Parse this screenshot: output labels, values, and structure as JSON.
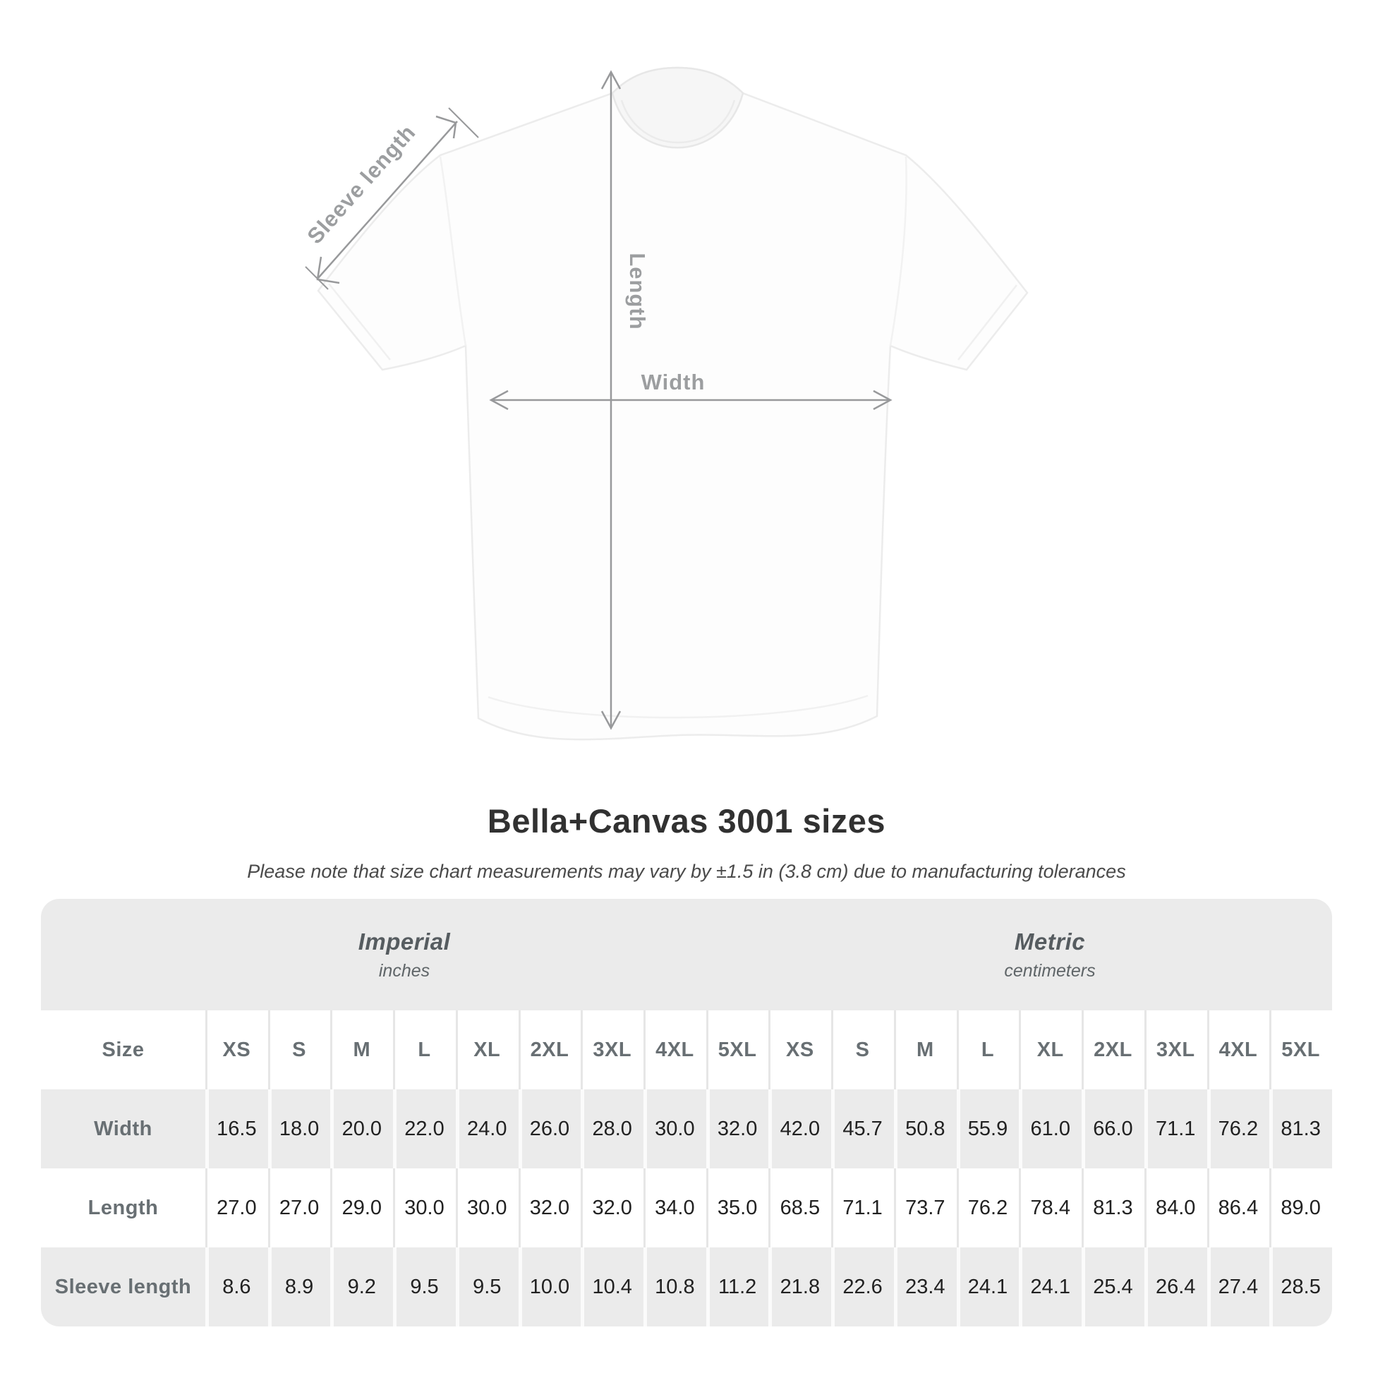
{
  "diagram": {
    "labels": {
      "sleeve_length": "Sleeve length",
      "length": "Length",
      "width": "Width"
    },
    "arrow_color": "#98999b",
    "label_color": "#9c9ea0"
  },
  "title": "Bella+Canvas 3001 sizes",
  "subtitle": "Please note that size chart measurements may vary by ±1.5 in (3.8 cm) due to manufacturing tolerances",
  "table": {
    "size_header": "Size",
    "unit_groups": [
      {
        "name": "Imperial",
        "unit": "inches"
      },
      {
        "name": "Metric",
        "unit": "centimeters"
      }
    ],
    "sizes": [
      "XS",
      "S",
      "M",
      "L",
      "XL",
      "2XL",
      "3XL",
      "4XL",
      "5XL"
    ],
    "rows": [
      {
        "label": "Width",
        "imperial": [
          "16.5",
          "18.0",
          "20.0",
          "22.0",
          "24.0",
          "26.0",
          "28.0",
          "30.0",
          "32.0"
        ],
        "metric": [
          "42.0",
          "45.7",
          "50.8",
          "55.9",
          "61.0",
          "66.0",
          "71.1",
          "76.2",
          "81.3"
        ]
      },
      {
        "label": "Length",
        "imperial": [
          "27.0",
          "27.0",
          "29.0",
          "30.0",
          "30.0",
          "32.0",
          "32.0",
          "34.0",
          "35.0"
        ],
        "metric": [
          "68.5",
          "71.1",
          "73.7",
          "76.2",
          "78.4",
          "81.3",
          "84.0",
          "86.4",
          "89.0"
        ]
      },
      {
        "label": "Sleeve length",
        "imperial": [
          "8.6",
          "8.9",
          "9.2",
          "9.5",
          "9.5",
          "10.0",
          "10.4",
          "10.8",
          "11.2"
        ],
        "metric": [
          "21.8",
          "22.6",
          "23.4",
          "24.1",
          "24.1",
          "25.4",
          "26.4",
          "27.4",
          "28.5"
        ]
      }
    ],
    "colors": {
      "table_bg": "#ebebeb",
      "row_white": "#ffffff",
      "header_text": "#686f73",
      "value_text": "#212121"
    }
  },
  "chart_data": {
    "type": "table",
    "title": "Bella+Canvas 3001 sizes",
    "note": "Please note that size chart measurements may vary by ±1.5 in (3.8 cm) due to manufacturing tolerances",
    "categories": [
      "XS",
      "S",
      "M",
      "L",
      "XL",
      "2XL",
      "3XL",
      "4XL",
      "5XL"
    ],
    "series": [
      {
        "name": "Width (inches)",
        "values": [
          16.5,
          18.0,
          20.0,
          22.0,
          24.0,
          26.0,
          28.0,
          30.0,
          32.0
        ]
      },
      {
        "name": "Length (inches)",
        "values": [
          27.0,
          27.0,
          29.0,
          30.0,
          30.0,
          32.0,
          32.0,
          34.0,
          35.0
        ]
      },
      {
        "name": "Sleeve length (inches)",
        "values": [
          8.6,
          8.9,
          9.2,
          9.5,
          9.5,
          10.0,
          10.4,
          10.8,
          11.2
        ]
      },
      {
        "name": "Width (centimeters)",
        "values": [
          42.0,
          45.7,
          50.8,
          55.9,
          61.0,
          66.0,
          71.1,
          76.2,
          81.3
        ]
      },
      {
        "name": "Length (centimeters)",
        "values": [
          68.5,
          71.1,
          73.7,
          76.2,
          78.4,
          81.3,
          84.0,
          86.4,
          89.0
        ]
      },
      {
        "name": "Sleeve length (centimeters)",
        "values": [
          21.8,
          22.6,
          23.4,
          24.1,
          24.1,
          25.4,
          26.4,
          27.4,
          28.5
        ]
      }
    ]
  }
}
